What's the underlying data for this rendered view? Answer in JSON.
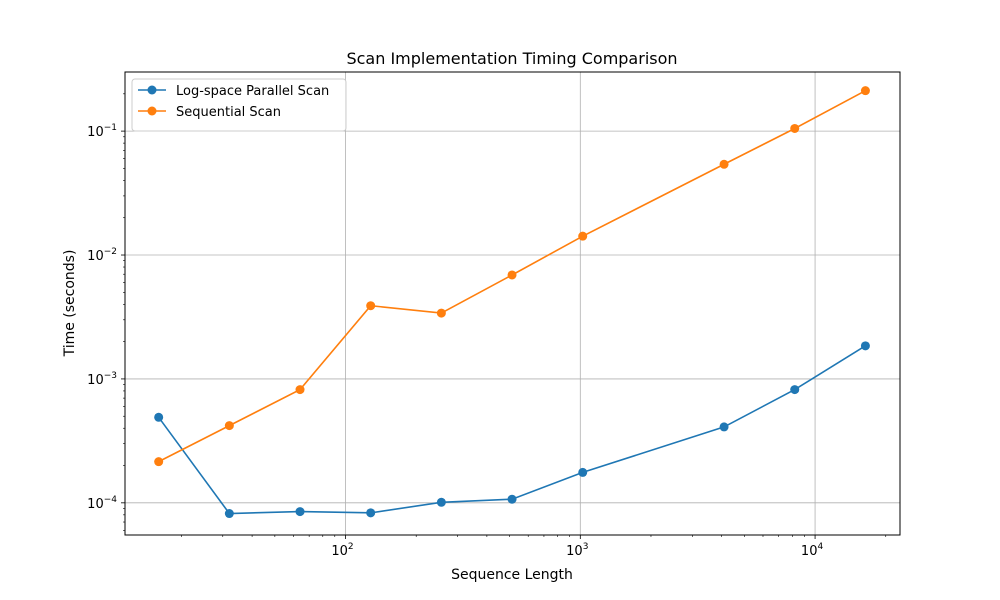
{
  "chart_data": {
    "type": "line",
    "title": "Scan Implementation Timing Comparison",
    "xlabel": "Sequence Length",
    "ylabel": "Time (seconds)",
    "xscale": "log",
    "yscale": "log",
    "xlim": [
      11.5,
      23000
    ],
    "ylim": [
      5.5e-05,
      0.3
    ],
    "x_ticks": [
      {
        "value": 100,
        "base": "10",
        "exp": "2"
      },
      {
        "value": 1000,
        "base": "10",
        "exp": "3"
      },
      {
        "value": 10000,
        "base": "10",
        "exp": "4"
      }
    ],
    "y_ticks": [
      {
        "value": 0.0001,
        "base": "10",
        "exp": "−4"
      },
      {
        "value": 0.001,
        "base": "10",
        "exp": "−3"
      },
      {
        "value": 0.01,
        "base": "10",
        "exp": "−2"
      },
      {
        "value": 0.1,
        "base": "10",
        "exp": "−1"
      }
    ],
    "grid": true,
    "legend_position": "top-left",
    "x": [
      16,
      32,
      64,
      128,
      256,
      512,
      1024,
      4096,
      8192,
      16384
    ],
    "series": [
      {
        "name": "Log-space Parallel Scan",
        "color": "#1f77b4",
        "marker": "circle",
        "values": [
          0.00049,
          8.2e-05,
          8.5e-05,
          8.3e-05,
          0.000101,
          0.000107,
          0.000176,
          0.00041,
          0.00082,
          0.00185
        ]
      },
      {
        "name": "Sequential Scan",
        "color": "#ff7f0e",
        "marker": "circle",
        "values": [
          0.000215,
          0.00042,
          0.00082,
          0.0039,
          0.0034,
          0.0069,
          0.0142,
          0.054,
          0.105,
          0.212
        ]
      }
    ]
  }
}
